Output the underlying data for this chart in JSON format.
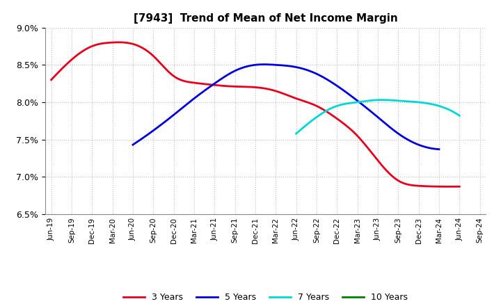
{
  "title": "[7943]  Trend of Mean of Net Income Margin",
  "xlabels": [
    "Jun-19",
    "Sep-19",
    "Dec-19",
    "Mar-20",
    "Jun-20",
    "Sep-20",
    "Dec-20",
    "Mar-21",
    "Jun-21",
    "Sep-21",
    "Dec-21",
    "Mar-22",
    "Jun-22",
    "Sep-22",
    "Dec-22",
    "Mar-23",
    "Jun-23",
    "Sep-23",
    "Dec-23",
    "Mar-24",
    "Jun-24",
    "Sep-24"
  ],
  "y3": [
    8.3,
    8.57,
    8.75,
    8.8,
    8.78,
    8.62,
    8.35,
    8.26,
    8.23,
    8.21,
    8.2,
    8.15,
    8.05,
    7.95,
    7.78,
    7.55,
    7.22,
    6.95,
    6.88,
    6.87,
    6.87,
    null
  ],
  "y5": [
    null,
    null,
    null,
    null,
    7.43,
    7.62,
    7.83,
    8.05,
    8.25,
    8.42,
    8.5,
    8.5,
    8.47,
    8.38,
    8.22,
    8.02,
    7.8,
    7.58,
    7.43,
    7.37,
    null,
    null
  ],
  "y7": [
    null,
    null,
    null,
    null,
    null,
    null,
    null,
    null,
    null,
    null,
    null,
    null,
    7.58,
    7.8,
    7.95,
    8.0,
    8.03,
    8.02,
    8.0,
    7.95,
    7.82,
    null
  ],
  "y10": [
    null,
    null,
    null,
    null,
    null,
    null,
    null,
    null,
    null,
    null,
    null,
    null,
    null,
    null,
    null,
    null,
    null,
    null,
    null,
    null,
    null,
    null
  ],
  "ylim": [
    6.5,
    9.0
  ],
  "yticks": [
    6.5,
    7.0,
    7.5,
    8.0,
    8.5,
    9.0
  ],
  "color_3y": "#e8001c",
  "color_5y": "#0000e0",
  "color_7y": "#00d8d8",
  "color_10y": "#008000",
  "legend_labels": [
    "3 Years",
    "5 Years",
    "7 Years",
    "10 Years"
  ],
  "background_color": "#ffffff",
  "grid_color": "#aaaaaa"
}
